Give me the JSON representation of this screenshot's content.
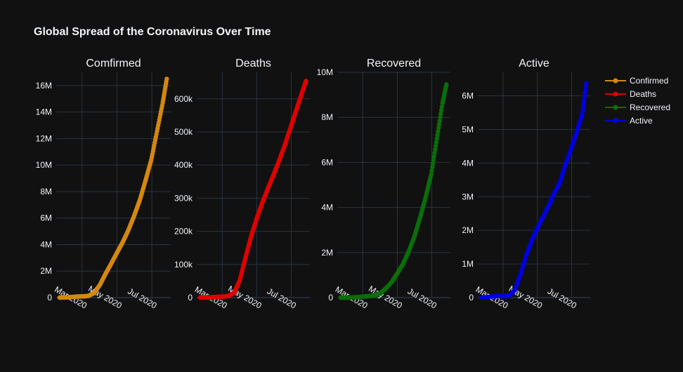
{
  "title": "Global Spread of the Coronavirus Over Time",
  "colors": {
    "background": "#111111",
    "grid": "#283442",
    "text": "#f2f5fa",
    "Confirmed": "#d4880f",
    "Deaths": "#e00000",
    "Recovered": "#0a6e0a",
    "Active": "#0000e0"
  },
  "legend": {
    "placement": "top-right",
    "entries": [
      "Confirmed",
      "Deaths",
      "Recovered",
      "Active"
    ]
  },
  "chart_data": [
    {
      "type": "scatter",
      "mode": "lines+markers",
      "title": "Comfirmed",
      "series": [
        {
          "name": "Confirmed",
          "color": "#d4880f",
          "x": [
            "2020-01-22",
            "2020-02-01",
            "2020-02-12",
            "2020-02-22",
            "2020-03-03",
            "2020-03-12",
            "2020-03-22",
            "2020-04-01",
            "2020-04-11",
            "2020-04-21",
            "2020-05-01",
            "2020-05-11",
            "2020-05-21",
            "2020-05-31",
            "2020-06-10",
            "2020-06-20",
            "2020-06-30",
            "2020-07-10",
            "2020-07-20",
            "2020-07-27"
          ],
          "y": [
            555,
            12000,
            45000,
            79000,
            92000,
            128000,
            340000,
            940000,
            1780000,
            2560000,
            3380000,
            4170000,
            5090000,
            6160000,
            7360000,
            8840000,
            10400000,
            12550000,
            14700000,
            16500000
          ]
        }
      ],
      "xaxis": {
        "ticks": [
          "Mar 2020",
          "May 2020",
          "Jul 2020"
        ]
      },
      "yaxis": {
        "range": [
          0,
          17000000
        ],
        "ticks": [
          0,
          2000000,
          4000000,
          6000000,
          8000000,
          10000000,
          12000000,
          14000000,
          16000000
        ],
        "tick_labels": [
          "0",
          "2M",
          "4M",
          "6M",
          "8M",
          "10M",
          "12M",
          "14M",
          "16M"
        ]
      },
      "grid": true
    },
    {
      "type": "scatter",
      "mode": "lines+markers",
      "title": "Deaths",
      "series": [
        {
          "name": "Deaths",
          "color": "#e00000",
          "x": [
            "2020-01-22",
            "2020-02-01",
            "2020-02-12",
            "2020-02-22",
            "2020-03-03",
            "2020-03-12",
            "2020-03-22",
            "2020-04-01",
            "2020-04-11",
            "2020-04-21",
            "2020-05-01",
            "2020-05-11",
            "2020-05-21",
            "2020-05-31",
            "2020-06-10",
            "2020-06-20",
            "2020-06-30",
            "2020-07-10",
            "2020-07-20",
            "2020-07-27"
          ],
          "y": [
            17,
            259,
            1120,
            2460,
            3200,
            4720,
            14650,
            51400,
            120000,
            184000,
            239000,
            287000,
            330000,
            372000,
            415000,
            462000,
            514000,
            566000,
            618000,
            654000
          ]
        }
      ],
      "xaxis": {
        "ticks": [
          "Mar 2020",
          "May 2020",
          "Jul 2020"
        ]
      },
      "yaxis": {
        "range": [
          0,
          680000
        ],
        "ticks": [
          0,
          100000,
          200000,
          300000,
          400000,
          500000,
          600000
        ],
        "tick_labels": [
          "0",
          "100k",
          "200k",
          "300k",
          "400k",
          "500k",
          "600k"
        ]
      },
      "grid": true
    },
    {
      "type": "scatter",
      "mode": "lines+markers",
      "title": "Recovered",
      "series": [
        {
          "name": "Recovered",
          "color": "#0a6e0a",
          "x": [
            "2020-01-22",
            "2020-02-01",
            "2020-02-12",
            "2020-02-22",
            "2020-03-03",
            "2020-03-12",
            "2020-03-22",
            "2020-04-01",
            "2020-04-11",
            "2020-04-21",
            "2020-05-01",
            "2020-05-11",
            "2020-05-21",
            "2020-05-31",
            "2020-06-10",
            "2020-06-20",
            "2020-06-30",
            "2020-07-10",
            "2020-07-20",
            "2020-07-27"
          ],
          "y": [
            28,
            284,
            7000,
            23400,
            48200,
            68300,
            98000,
            194000,
            410000,
            680000,
            1070000,
            1480000,
            2030000,
            2680000,
            3520000,
            4420000,
            5470000,
            7050000,
            8630000,
            9460000
          ]
        }
      ],
      "xaxis": {
        "ticks": [
          "Mar 2020",
          "May 2020",
          "Jul 2020"
        ]
      },
      "yaxis": {
        "range": [
          0,
          10000000
        ],
        "ticks": [
          0,
          2000000,
          4000000,
          6000000,
          8000000,
          10000000
        ],
        "tick_labels": [
          "0",
          "2M",
          "4M",
          "6M",
          "8M",
          "10M"
        ]
      },
      "grid": true
    },
    {
      "type": "scatter",
      "mode": "lines+markers",
      "title": "Active",
      "series": [
        {
          "name": "Active",
          "color": "#0000e0",
          "x": [
            "2020-01-22",
            "2020-02-01",
            "2020-02-12",
            "2020-02-22",
            "2020-03-03",
            "2020-03-12",
            "2020-03-22",
            "2020-04-01",
            "2020-04-11",
            "2020-04-21",
            "2020-05-01",
            "2020-05-11",
            "2020-05-21",
            "2020-05-31",
            "2020-06-10",
            "2020-06-20",
            "2020-06-30",
            "2020-07-10",
            "2020-07-20",
            "2020-07-27"
          ],
          "y": [
            510,
            11400,
            37000,
            53000,
            41000,
            56000,
            228000,
            695000,
            1250000,
            1700000,
            2070000,
            2400000,
            2730000,
            3110000,
            3420000,
            3960000,
            4420000,
            4930000,
            5460000,
            6380000
          ]
        }
      ],
      "xaxis": {
        "ticks": [
          "Mar 2020",
          "May 2020",
          "Jul 2020"
        ]
      },
      "yaxis": {
        "range": [
          0,
          6700000
        ],
        "ticks": [
          0,
          1000000,
          2000000,
          3000000,
          4000000,
          5000000,
          6000000
        ],
        "tick_labels": [
          "0",
          "1M",
          "2M",
          "3M",
          "4M",
          "5M",
          "6M"
        ]
      },
      "grid": true
    }
  ]
}
